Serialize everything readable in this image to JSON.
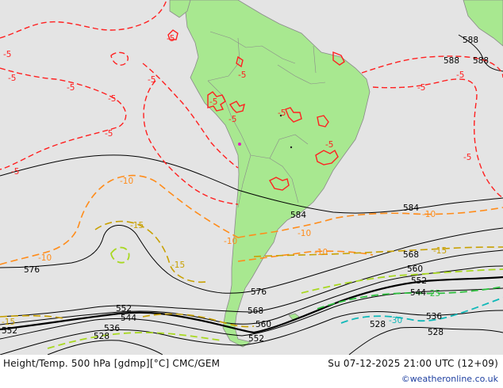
{
  "header": {
    "product_title": "Height/Temp. 500 hPa [gdmp][°C] CMC/GEM",
    "valid_time": "Su 07-12-2025 21:00 UTC (12+09)"
  },
  "credit": "©weatheronline.co.uk",
  "colors": {
    "ocean": "#e4e4e4",
    "land": "#a8e890",
    "border": "#888888",
    "height_contour": "#000000",
    "temp_minus5": "#ff2020",
    "temp_minus10": "#ff8c1a",
    "temp_minus15": "#c8a000",
    "temp_minus20": "#a8d820",
    "temp_minus25": "#30c040",
    "temp_minus30": "#10b8b8"
  },
  "height_labels": [
    "588",
    "588",
    "588",
    "584",
    "584",
    "576",
    "576",
    "568",
    "568",
    "560",
    "560",
    "552",
    "552",
    "552",
    "552",
    "544",
    "544",
    "536",
    "536",
    "528",
    "528",
    "528"
  ],
  "temperature_labels": [
    "-5",
    "-5",
    "-5",
    "-5",
    "-5",
    "-5",
    "-5",
    "-5",
    "-5",
    "-5",
    "-5",
    "-5",
    "-5",
    "-5",
    "-5",
    "-5",
    "-10",
    "-10",
    "-10",
    "-10",
    "-10",
    "-10",
    "-15",
    "-15",
    "-15",
    "-15",
    "-25",
    "-30"
  ]
}
